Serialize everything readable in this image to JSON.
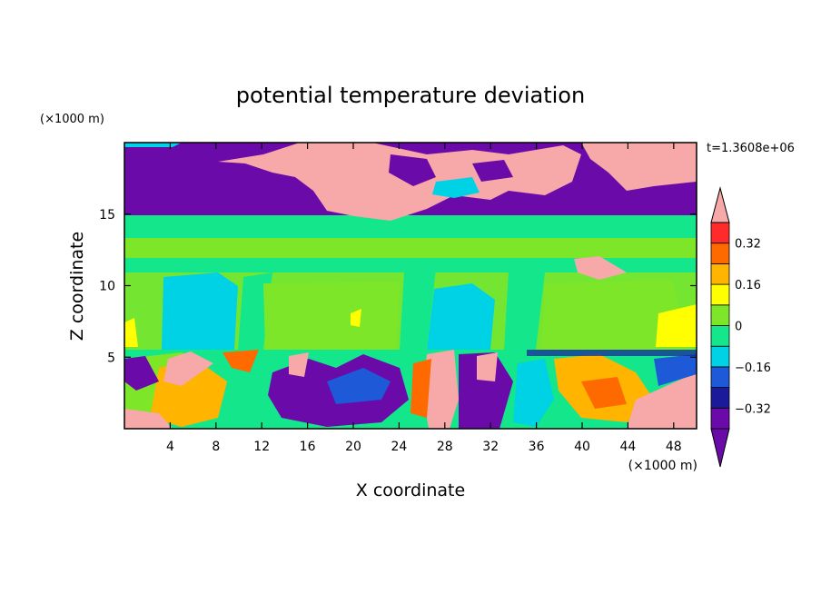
{
  "chart_data": {
    "type": "heatmap",
    "title": "potential temperature deviation",
    "xlabel": "X coordinate",
    "ylabel": "Z coordinate",
    "x_unit": "(×1000 m)",
    "z_unit": "(×1000 m)",
    "time_label": "t=1.3608e+06",
    "xlim": [
      0,
      50
    ],
    "zlim": [
      0,
      20
    ],
    "x_ticks": [
      4,
      8,
      12,
      16,
      20,
      24,
      28,
      32,
      36,
      40,
      44,
      48
    ],
    "z_ticks": [
      5,
      10,
      15
    ],
    "colorbar": {
      "levels": [
        -0.4,
        -0.32,
        -0.24,
        -0.16,
        -0.08,
        0,
        0.08,
        0.16,
        0.24,
        0.32,
        0.4
      ],
      "labels": [
        "0.32",
        "0.16",
        "0",
        "−0.16",
        "−0.32"
      ],
      "label_values": [
        0.32,
        0.16,
        0,
        -0.16,
        -0.32
      ],
      "colors": [
        "#6a0aa8",
        "#1a1a9a",
        "#1e5ad8",
        "#00d2e6",
        "#14e68c",
        "#7ee628",
        "#ffff00",
        "#ffb400",
        "#ff6a00",
        "#ff2a2a",
        "#f7a8a8"
      ],
      "extend": "both"
    },
    "regions": [
      {
        "zone": "upper",
        "z_range": [
          15,
          20
        ],
        "dominant_value": -0.45,
        "note": "mostly lowest class with a large high-value patch centered near x=20-26"
      },
      {
        "zone": "middle",
        "z_range": [
          5.5,
          15
        ],
        "dominant_value": 0.0,
        "note": "weak near-zero deviation, cyan columns near x=4-8 and x=26-32"
      },
      {
        "zone": "lower",
        "z_range": [
          0,
          5.5
        ],
        "dominant_value": 0.0,
        "note": "strongly mixed layer with alternating extremes"
      }
    ]
  }
}
